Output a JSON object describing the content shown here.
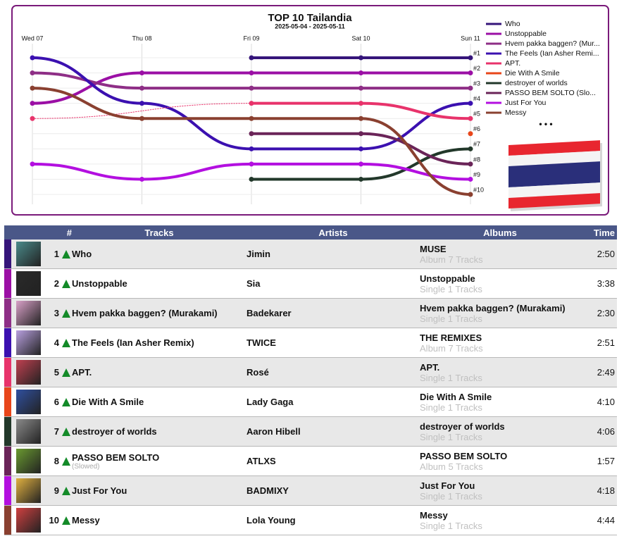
{
  "chart_data": {
    "type": "bump",
    "title": "TOP 10 Tailandia",
    "subtitle": "2025-05-04 - 2025-05-11",
    "categories": [
      "Wed 07",
      "Thu 08",
      "Fri 09",
      "Sat 10",
      "Sun 11"
    ],
    "ylim": [
      10,
      1
    ],
    "yticks": [
      {
        "value": 1,
        "label": "#1"
      },
      {
        "value": 2,
        "label": "#2"
      },
      {
        "value": 3,
        "label": "#3"
      },
      {
        "value": 4,
        "label": "#4"
      },
      {
        "value": 5,
        "label": "#5"
      },
      {
        "value": 6,
        "label": "#6"
      },
      {
        "value": 7,
        "label": "#7"
      },
      {
        "value": 8,
        "label": "#8"
      },
      {
        "value": 9,
        "label": "#9"
      },
      {
        "value": 10,
        "label": "#10"
      }
    ],
    "grid": true,
    "legend_more": "• • •",
    "series": [
      {
        "name": "Who",
        "color": "#35157a",
        "values": [
          null,
          null,
          1,
          1,
          1
        ]
      },
      {
        "name": "Unstoppable",
        "color": "#9b0fa5",
        "values": [
          4,
          2,
          2,
          2,
          2
        ]
      },
      {
        "name": "Hvem pakka baggen? (Mur...",
        "color": "#8e2e86",
        "values": [
          2,
          3,
          3,
          3,
          3
        ]
      },
      {
        "name": "The Feels (Ian Asher Remi...",
        "color": "#3b10b0",
        "values": [
          1,
          4,
          7,
          7,
          4
        ]
      },
      {
        "name": "APT.",
        "color": "#e8336b",
        "values": [
          5,
          null,
          4,
          4,
          5
        ]
      },
      {
        "name": "Die With A Smile",
        "color": "#e8461a",
        "values": [
          null,
          null,
          null,
          null,
          6
        ]
      },
      {
        "name": "destroyer of worlds",
        "color": "#22382a",
        "values": [
          null,
          null,
          9,
          9,
          7
        ]
      },
      {
        "name": "PASSO BEM SOLTO (Slo...",
        "color": "#6a2458",
        "values": [
          null,
          null,
          6,
          6,
          8
        ]
      },
      {
        "name": "Just For You",
        "color": "#b30fe0",
        "values": [
          8,
          9,
          8,
          8,
          9
        ]
      },
      {
        "name": "Messy",
        "color": "#8a4030",
        "values": [
          3,
          5,
          5,
          5,
          10
        ]
      }
    ]
  },
  "table": {
    "columns": [
      "#",
      "Tracks",
      "Artists",
      "Albums",
      "Time"
    ],
    "rows": [
      {
        "rank": 1,
        "track": "Who",
        "artist": "Jimin",
        "album": "MUSE",
        "album_meta": "Album 7 Tracks",
        "time": "2:50"
      },
      {
        "rank": 2,
        "track": "Unstoppable",
        "artist": "Sia",
        "album": "Unstoppable",
        "album_meta": "Single 1 Tracks",
        "time": "3:38"
      },
      {
        "rank": 3,
        "track": "Hvem pakka baggen? (Murakami)",
        "artist": "Badekarer",
        "album": "Hvem pakka baggen? (Murakami)",
        "album_meta": "Single 1 Tracks",
        "time": "2:30"
      },
      {
        "rank": 4,
        "track": "The Feels (Ian Asher Remix)",
        "artist": "TWICE",
        "album": "THE REMIXES",
        "album_meta": "Album 7 Tracks",
        "time": "2:51"
      },
      {
        "rank": 5,
        "track": "APT.",
        "artist": "Rosé",
        "album": "APT.",
        "album_meta": "Single 1 Tracks",
        "time": "2:49"
      },
      {
        "rank": 6,
        "track": "Die With A Smile",
        "artist": "Lady Gaga",
        "album": "Die With A Smile",
        "album_meta": "Single 1 Tracks",
        "time": "4:10"
      },
      {
        "rank": 7,
        "track": "destroyer of worlds",
        "artist": "Aaron Hibell",
        "album": "destroyer of worlds",
        "album_meta": "Single 1 Tracks",
        "time": "4:06"
      },
      {
        "rank": 8,
        "track": "PASSO BEM SOLTO",
        "track_sub": "(Slowed)",
        "artist": "ATLXS",
        "album": "PASSO BEM SOLTO",
        "album_meta": "Album 5 Tracks",
        "time": "1:57"
      },
      {
        "rank": 9,
        "track": "Just For You",
        "artist": "BADMIXY",
        "album": "Just For You",
        "album_meta": "Single 1 Tracks",
        "time": "4:18"
      },
      {
        "rank": 10,
        "track": "Messy",
        "artist": "Lola Young",
        "album": "Messy",
        "album_meta": "Single 1 Tracks",
        "time": "4:44"
      }
    ]
  }
}
